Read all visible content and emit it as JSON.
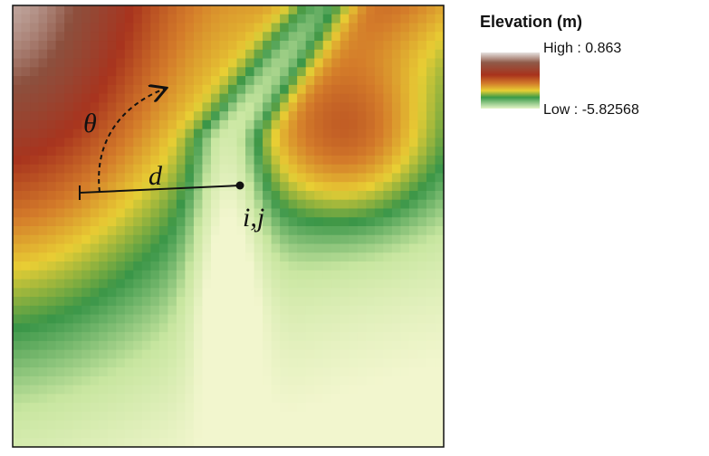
{
  "legend": {
    "title": "Elevation (m)",
    "high": "High : 0.863",
    "low": "Low : -5.82568"
  },
  "annotations": {
    "angle": "θ",
    "distance": "d",
    "cell": "i,j"
  }
}
